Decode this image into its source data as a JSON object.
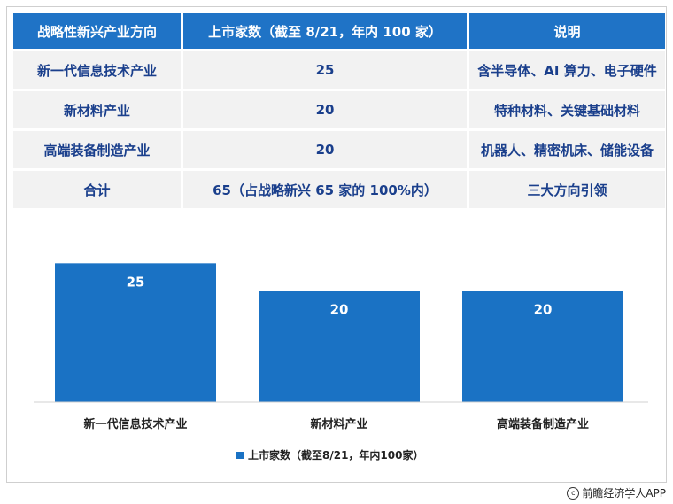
{
  "table": {
    "headers": [
      "战略性新兴产业方向",
      "上市家数（截至 8/21，年内 100 家）",
      "说明"
    ],
    "rows": [
      [
        "新一代信息技术产业",
        "25",
        "含半导体、AI 算力、电子硬件"
      ],
      [
        "新材料产业",
        "20",
        "特种材料、关键基础材料"
      ],
      [
        "高端装备制造产业",
        "20",
        "机器人、精密机床、储能设备"
      ],
      [
        "合计",
        "65（占战略新兴 65 家的 100%内）",
        "三大方向引领"
      ]
    ]
  },
  "chart_data": {
    "type": "bar",
    "categories": [
      "新一代信息技术产业",
      "新材料产业",
      "高端装备制造产业"
    ],
    "series": [
      {
        "name": "上市家数（截至8/21，年内100家）",
        "values": [
          25,
          20,
          20
        ]
      }
    ],
    "ylim": [
      0,
      30
    ],
    "grid": false,
    "legend": "bottom-center",
    "data_labels": true,
    "bar_color": "#1a72c4"
  },
  "footer": {
    "copyright_symbol": "c",
    "source": "前瞻经济学人APP"
  }
}
